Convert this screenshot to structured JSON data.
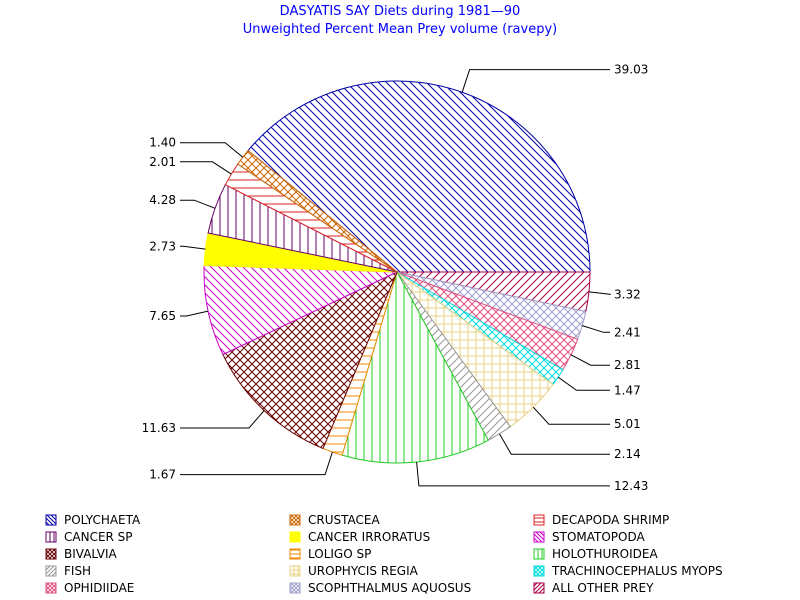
{
  "chart_data": {
    "type": "pie",
    "title": "DASYATIS SAY Diets during 1981—90",
    "subtitle": "Unweighted Percent Mean Prey volume (ravepy)",
    "slices": [
      {
        "label": "POLYCHAETA",
        "value": 39.03,
        "value_label": "39.03",
        "color": "#0000aa",
        "pattern": "diag-down"
      },
      {
        "label": "ALL OTHER PREY",
        "value": 3.32,
        "value_label": "3.32",
        "color": "#aa0044",
        "pattern": "diag-up"
      },
      {
        "label": "SCOPHTHALMUS AQUOSUS",
        "value": 2.41,
        "value_label": "2.41",
        "color": "#a0a0cc",
        "pattern": "cross-diag"
      },
      {
        "label": "OPHIDIIDAE",
        "value": 2.81,
        "value_label": "2.81",
        "color": "#e05080",
        "pattern": "cross-diag"
      },
      {
        "label": "TRACHINOCEPHALUS MYOPS",
        "value": 1.47,
        "value_label": "1.47",
        "color": "#00dddd",
        "pattern": "cross-diag"
      },
      {
        "label": "UROPHYCIS REGIA",
        "value": 5.01,
        "value_label": "5.01",
        "color": "#e8d080",
        "pattern": "grid"
      },
      {
        "label": "FISH",
        "value": 2.14,
        "value_label": "2.14",
        "color": "#999999",
        "pattern": "diag-up"
      },
      {
        "label": "HOLOTHUROIDEA",
        "value": 12.43,
        "value_label": "12.43",
        "color": "#22cc22",
        "pattern": "vertical"
      },
      {
        "label": "LOLIGO SP",
        "value": 1.67,
        "value_label": "1.67",
        "color": "#ee8800",
        "pattern": "horizontal"
      },
      {
        "label": "BIVALVIA",
        "value": 11.63,
        "value_label": "11.63",
        "color": "#660000",
        "pattern": "cross-diag"
      },
      {
        "label": "STOMATOPODA",
        "value": 7.65,
        "value_label": "7.65",
        "color": "#cc00cc",
        "pattern": "diag-down"
      },
      {
        "label": "CANCER IRRORATUS",
        "value": 2.73,
        "value_label": "2.73",
        "color": "#ffff00",
        "pattern": "solid"
      },
      {
        "label": "CANCER SP",
        "value": 4.28,
        "value_label": "4.28",
        "color": "#660066",
        "pattern": "vertical"
      },
      {
        "label": "DECAPODA SHRIMP",
        "value": 2.01,
        "value_label": "2.01",
        "color": "#dd2222",
        "pattern": "horizontal"
      },
      {
        "label": "CRUSTACEA",
        "value": 1.4,
        "value_label": "1.40",
        "color": "#cc6600",
        "pattern": "cross-diag"
      }
    ],
    "legend": {
      "placement": "bottom",
      "columns": [
        [
          "POLYCHAETA",
          "CANCER SP",
          "BIVALVIA",
          "FISH",
          "OPHIDIIDAE"
        ],
        [
          "CRUSTACEA",
          "CANCER IRRORATUS",
          "LOLIGO SP",
          "UROPHYCIS REGIA",
          "SCOPHTHALMUS AQUOSUS"
        ],
        [
          "DECAPODA SHRIMP",
          "STOMATOPODA",
          "HOLOTHUROIDEA",
          "TRACHINOCEPHALUS MYOPS",
          "ALL OTHER PREY"
        ]
      ]
    }
  }
}
